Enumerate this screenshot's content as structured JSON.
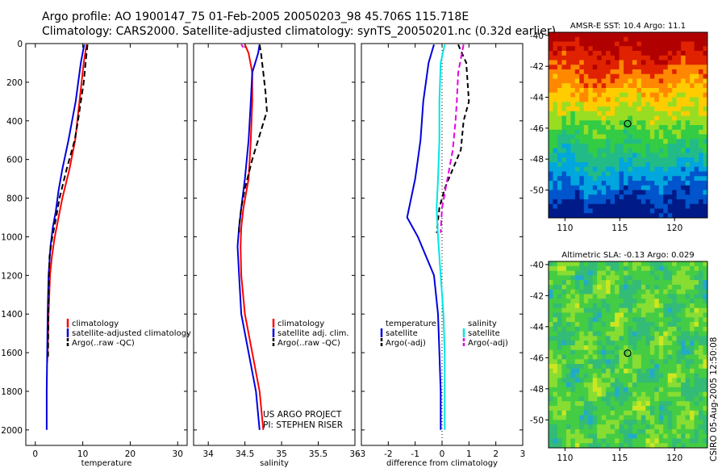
{
  "header": {
    "line1": "Argo profile: AO 1900147_75 01-Feb-2005 20050203_98 45.706S 115.718E",
    "line2": "Climatology: CARS2000. Satellite-adjusted climatology: synTS_20050201.nc (0.32d earlier)"
  },
  "credit": {
    "line1": "US ARGO PROJECT",
    "line2": "PI: STEPHEN RISER"
  },
  "stamp": "CSIRO 05-Aug-2005 12:50:08",
  "colors": {
    "red": "#ff0000",
    "blue": "#0000dd",
    "black": "#000000",
    "cyan": "#00e5e5",
    "magenta": "#e600e6"
  },
  "chart_data": [
    {
      "type": "line",
      "xlabel": "temperature",
      "ylabel": "",
      "xlim": [
        -2,
        32
      ],
      "ylim": [
        0,
        2080
      ],
      "y_reversed": true,
      "xticks": [
        0,
        10,
        20,
        30
      ],
      "yticks": [
        0,
        200,
        400,
        600,
        800,
        1000,
        1200,
        1400,
        1600,
        1800,
        2000
      ],
      "legend": [
        "climatology",
        "satellite-adjusted climatology",
        "Argo(..raw -QC)"
      ],
      "series": [
        {
          "name": "climatology",
          "color": "red",
          "dash": "",
          "x": [
            10.8,
            10.2,
            9.3,
            8.4,
            7.2,
            5.7,
            4.9,
            4.1,
            3.5,
            3.1,
            2.8,
            2.6,
            2.5
          ],
          "y": [
            5,
            100,
            300,
            500,
            650,
            800,
            900,
            1000,
            1100,
            1200,
            1400,
            1600,
            1650
          ]
        },
        {
          "name": "satellite-adjusted climatology",
          "color": "blue",
          "dash": "",
          "x": [
            10.3,
            9.6,
            8.5,
            7.0,
            5.7,
            4.9,
            4.3,
            3.7,
            3.2,
            2.8,
            2.6,
            2.5,
            2.4,
            2.4
          ],
          "y": [
            5,
            100,
            300,
            500,
            650,
            760,
            870,
            950,
            1050,
            1200,
            1400,
            1600,
            1800,
            2000
          ]
        },
        {
          "name": "Argo(..raw -QC)",
          "color": "black",
          "dash": "7,4",
          "x": [
            11.0,
            10.6,
            10.2,
            9.6,
            9.0,
            8.3,
            6.6,
            5.1,
            4.4,
            3.6,
            3.0,
            2.8,
            2.7
          ],
          "y": [
            5,
            100,
            200,
            300,
            400,
            500,
            650,
            800,
            900,
            1000,
            1100,
            1300,
            1620
          ]
        }
      ]
    },
    {
      "type": "line",
      "xlabel": "salinity",
      "ylabel": "",
      "xlim": [
        33.8,
        36.0
      ],
      "ylim": [
        0,
        2080
      ],
      "y_reversed": true,
      "xticks": [
        34,
        34.5,
        35,
        35.5,
        36
      ],
      "yticks": [],
      "legend": [
        "climatology",
        "satellite adj. clim.",
        "Argo(..raw -QC)"
      ],
      "series": [
        {
          "name": "climatology",
          "color": "red",
          "dash": "",
          "x": [
            34.5,
            34.55,
            34.6,
            34.6,
            34.58,
            34.55,
            34.48,
            34.45,
            34.44,
            34.45,
            34.5,
            34.6,
            34.7,
            34.75
          ],
          "y": [
            5,
            50,
            150,
            300,
            500,
            700,
            850,
            950,
            1050,
            1200,
            1400,
            1600,
            1800,
            2000
          ]
        },
        {
          "name": "satellite adj. clim.",
          "color": "blue",
          "dash": "",
          "x": [
            34.7,
            34.68,
            34.6,
            34.58,
            34.55,
            34.5,
            34.45,
            34.42,
            34.4,
            34.42,
            34.45,
            34.55,
            34.65,
            34.7
          ],
          "y": [
            5,
            50,
            150,
            300,
            500,
            700,
            850,
            950,
            1050,
            1200,
            1400,
            1600,
            1800,
            2000
          ]
        },
        {
          "name": "Argo(..raw -QC)",
          "color": "black",
          "dash": "7,4",
          "x": [
            34.7,
            34.72,
            34.75,
            34.78,
            34.8,
            34.72,
            34.6,
            34.5,
            34.45,
            34.42,
            34.42
          ],
          "y": [
            5,
            50,
            150,
            250,
            350,
            450,
            600,
            750,
            850,
            950,
            990
          ]
        },
        {
          "name": "",
          "color": "magenta",
          "dash": "",
          "x": [
            34.45,
            34.48
          ],
          "y": [
            5,
            20
          ]
        }
      ]
    },
    {
      "type": "line",
      "xlabel": "difference from climatology",
      "ylabel": "",
      "xlim": [
        -3,
        3
      ],
      "ylim": [
        0,
        2080
      ],
      "y_reversed": true,
      "xticks": [
        -3,
        -2,
        -1,
        0,
        1,
        2,
        3
      ],
      "yticks": [],
      "legend_headers": [
        "temperature",
        "salinity"
      ],
      "legend": [
        "satellite",
        "Argo(-adj)",
        "satellite",
        "Argo(-adj)"
      ],
      "series": [
        {
          "name": "satellite",
          "group": "temperature",
          "color": "blue",
          "dash": "",
          "x": [
            -0.3,
            -0.5,
            -0.6,
            -0.7,
            -0.75,
            -0.8,
            -0.9,
            -1.0,
            -1.3,
            -0.9,
            -0.6,
            -0.3,
            -0.15,
            -0.1,
            -0.05,
            -0.05
          ],
          "y": [
            5,
            100,
            200,
            300,
            400,
            500,
            600,
            700,
            900,
            1000,
            1100,
            1200,
            1400,
            1600,
            1800,
            2000
          ]
        },
        {
          "name": "Argo(-adj)",
          "group": "temperature",
          "color": "black",
          "dash": "6,4",
          "x": [
            0.6,
            0.9,
            1.0,
            0.8,
            0.7,
            0.4,
            0.1,
            -0.1,
            -0.2
          ],
          "y": [
            5,
            100,
            300,
            400,
            550,
            650,
            750,
            850,
            980
          ]
        },
        {
          "name": "satellite",
          "group": "salinity",
          "color": "cyan",
          "dash": "",
          "x": [
            0.1,
            -0.05,
            -0.1,
            -0.1,
            -0.15,
            -0.2,
            -0.15,
            -0.05,
            0.05,
            0.1,
            0.1,
            0.1
          ],
          "y": [
            5,
            100,
            300,
            500,
            700,
            850,
            1000,
            1200,
            1400,
            1600,
            1800,
            2000
          ]
        },
        {
          "name": "Argo(-adj)",
          "group": "salinity",
          "color": "magenta",
          "dash": "7,4",
          "x": [
            0.8,
            0.6,
            0.55,
            0.5,
            0.4,
            0.2,
            0.0,
            -0.05
          ],
          "y": [
            5,
            150,
            300,
            400,
            550,
            700,
            850,
            980
          ]
        }
      ]
    },
    {
      "type": "heatmap",
      "title": "AMSR-E SST: 10.4 Argo: 11.1",
      "xlim": [
        108.5,
        123
      ],
      "ylim": [
        -51.8,
        -39.8
      ],
      "xticks": [
        110,
        115,
        120
      ],
      "yticks": [
        -40,
        -42,
        -44,
        -46,
        -48,
        -50
      ],
      "marker": {
        "lon": 115.718,
        "lat": -45.706
      },
      "palette": [
        "#001a88",
        "#0055cc",
        "#00a6dd",
        "#22bb88",
        "#33cc44",
        "#99dd22",
        "#ffcc00",
        "#ff8800",
        "#e02200",
        "#b00000"
      ]
    },
    {
      "type": "heatmap",
      "title": "Altimetric SLA: -0.13 Argo: 0.029",
      "xlim": [
        108.5,
        123
      ],
      "ylim": [
        -51.8,
        -39.8
      ],
      "xticks": [
        110,
        115,
        120
      ],
      "yticks": [
        -40,
        -42,
        -44,
        -46,
        -48,
        -50
      ],
      "marker": {
        "lon": 115.718,
        "lat": -45.706
      },
      "palette": [
        "#22aacc",
        "#33bb77",
        "#44cc44",
        "#88dd33",
        "#cce622"
      ]
    }
  ]
}
